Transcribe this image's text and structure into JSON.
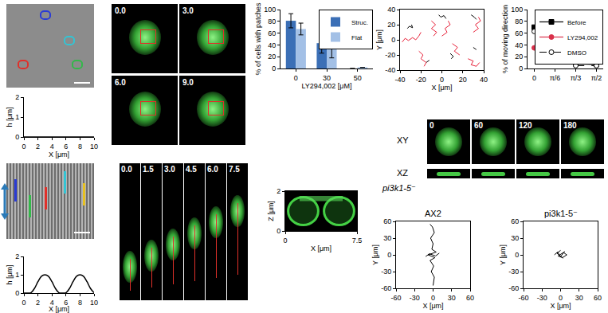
{
  "chart_data": [
    {
      "type": "line",
      "x": [
        0,
        1,
        2,
        3,
        4,
        5,
        6,
        7,
        8,
        9,
        10
      ],
      "values": [
        0,
        0,
        0,
        0,
        0,
        0,
        0,
        0,
        0,
        0,
        0
      ],
      "color": "#000000",
      "xlim": [
        0,
        10
      ],
      "xticks": [
        0,
        2,
        4,
        6,
        8,
        10
      ],
      "ylim": [
        0,
        2
      ],
      "yticks": [
        0,
        1,
        2
      ],
      "xlabel": "X [μm]",
      "ylabel": "h [μm]"
    },
    {
      "type": "line",
      "x": [
        0,
        0.5,
        1,
        1.5,
        2,
        2.5,
        3,
        3.5,
        4,
        4.5,
        5,
        5.5,
        6,
        6.5,
        7,
        7.5,
        8,
        8.5,
        9,
        9.5,
        10
      ],
      "values": [
        0,
        0,
        0.02,
        0.25,
        0.62,
        0.92,
        1,
        0.92,
        0.62,
        0.25,
        0.02,
        0,
        0.02,
        0.25,
        0.62,
        0.92,
        1,
        0.92,
        0.62,
        0.25,
        0.02
      ],
      "color": "#000000",
      "xlim": [
        0,
        10
      ],
      "xticks": [
        0,
        2,
        4,
        6,
        8,
        10
      ],
      "ylim": [
        0,
        2
      ],
      "yticks": [
        0,
        1,
        2
      ],
      "xlabel": "X [μm]",
      "ylabel": "h [μm]"
    },
    {
      "type": "bar",
      "categories": [
        "0",
        "30",
        "50"
      ],
      "series": [
        {
          "name": "Struc.",
          "color": "#3b6fb6",
          "values": [
            81,
            43,
            0
          ],
          "errors": [
            12,
            17,
            null
          ]
        },
        {
          "name": "Flat",
          "color": "#a3c0e6",
          "values": [
            67,
            46,
            2
          ],
          "errors": [
            10,
            28,
            null
          ]
        }
      ],
      "ylim": [
        0,
        100
      ],
      "yticks": [
        0,
        20,
        40,
        60,
        80,
        100
      ],
      "ylabel": "% of cells with patches",
      "xlabel": "LY294,002 [μM]",
      "legend": "upper right"
    },
    {
      "type": "scatter",
      "line_style": "solid",
      "series": [
        {
          "color": "#000000",
          "x": [
            -33,
            -31,
            -28,
            -29,
            null,
            -3,
            -1,
            2,
            4,
            null,
            28,
            31,
            33,
            null,
            8,
            11,
            9,
            null,
            30,
            33,
            null,
            -15,
            -12
          ],
          "values": [
            15,
            18,
            16,
            20,
            null,
            33,
            30,
            32,
            28,
            null,
            33,
            30,
            27,
            null,
            -18,
            -22,
            -25,
            null,
            -10,
            -13,
            null,
            -30,
            -27
          ]
        },
        {
          "color": "#e8223a",
          "x": [
            -38,
            -35,
            -32,
            -28,
            -25,
            -22,
            -20,
            null,
            -22,
            -18,
            -20,
            -15,
            -17,
            null,
            -10,
            -6,
            -10,
            -5,
            -8,
            null,
            0,
            5,
            3,
            8,
            6,
            null,
            10,
            15,
            12,
            17,
            null,
            25,
            30,
            28,
            33,
            36,
            null,
            30,
            35,
            32,
            37,
            35
          ],
          "values": [
            -3,
            2,
            -1,
            3,
            0,
            5,
            10,
            null,
            -15,
            -20,
            -25,
            -30,
            -35,
            null,
            25,
            20,
            15,
            10,
            5,
            null,
            5,
            10,
            15,
            20,
            25,
            null,
            -5,
            -10,
            -15,
            -20,
            null,
            -25,
            -28,
            -33,
            -35,
            -30,
            null,
            10,
            15,
            20,
            25,
            30
          ]
        }
      ],
      "xlim": [
        -40,
        40
      ],
      "xticks": [
        -40,
        -20,
        0,
        20,
        40
      ],
      "ylim": [
        -40,
        40
      ],
      "yticks": [
        -40,
        -20,
        0,
        20,
        40
      ],
      "xlabel": "X [μm]",
      "ylabel": "Y [μm]"
    },
    {
      "type": "line",
      "categories": [
        "0",
        "π/6",
        "π/3",
        "π/2"
      ],
      "series": [
        {
          "name": "Before",
          "color": "#000000",
          "marker": "square",
          "line_style": "solid",
          "values": [
            70,
            20,
            8,
            7
          ]
        },
        {
          "name": "LY294,002",
          "color": "#d9304a",
          "marker": "circle",
          "line_style": "solid",
          "values": [
            35,
            23,
            19,
            23
          ]
        },
        {
          "name": "DMSO",
          "color": "#000000",
          "marker": "open circle",
          "line_style": "dashed",
          "values": [
            63,
            17,
            5,
            5
          ]
        }
      ],
      "ylim": [
        0,
        100
      ],
      "yticks": [
        0,
        20,
        40,
        60,
        80,
        100
      ],
      "ylabel": "% of moving direction",
      "legend": "upper right"
    },
    {
      "type": "image",
      "xlim": [
        0,
        7.5
      ],
      "xticks": [
        0,
        7.5
      ],
      "ylim": [
        0,
        2
      ],
      "yticks": [
        0,
        2
      ],
      "xlabel": "X [μm]",
      "ylabel": "Z [μm]"
    },
    {
      "type": "scatter",
      "title": "AX2",
      "line_style": "solid",
      "series": [
        {
          "color": "#000000",
          "x": [
            0,
            2,
            -3,
            1,
            -5,
            3,
            -8,
            5,
            -2,
            0,
            -4,
            2,
            -1,
            -5,
            null,
            -12,
            -6,
            4,
            10
          ],
          "values": [
            -55,
            -40,
            -30,
            -20,
            -10,
            -5,
            0,
            5,
            10,
            20,
            30,
            40,
            50,
            55,
            null,
            -3,
            2,
            -2,
            3
          ]
        }
      ],
      "xlim": [
        -60,
        60
      ],
      "xticks": [
        -60,
        -30,
        0,
        30,
        60
      ],
      "ylim": [
        -60,
        60
      ],
      "yticks": [
        -60,
        -30,
        0,
        30,
        60
      ],
      "xlabel": "X [μm]",
      "ylabel": "Y [μm]"
    },
    {
      "type": "scatter",
      "title": "pi3k1-5⁻",
      "line_style": "solid",
      "series": [
        {
          "color": "#000000",
          "x": [
            -10,
            -5,
            0,
            5,
            10,
            3,
            -4,
            7,
            null,
            0,
            -6,
            4
          ],
          "values": [
            0,
            5,
            -3,
            4,
            0,
            -5,
            -2,
            6,
            null,
            8,
            3,
            -6
          ]
        }
      ],
      "xlim": [
        -60,
        60
      ],
      "xticks": [
        -60,
        -30,
        0,
        30,
        60
      ],
      "ylim": [
        -60,
        60
      ],
      "yticks": [
        -60,
        -30,
        0,
        30,
        60
      ],
      "xlabel": "X [μm]",
      "ylabel": "Y [μm]"
    }
  ],
  "images": {
    "timelapse_top": [
      "0.0",
      "3.0",
      "6.0",
      "9.0"
    ],
    "timelapse_bottom": [
      "0.0",
      "1.5",
      "3.0",
      "4.5",
      "6.0",
      "7.5"
    ],
    "pi3k_frames": {
      "times": [
        "0",
        "60",
        "120",
        "180"
      ],
      "rows": [
        "XY",
        "XZ"
      ],
      "strain": "pi3k1-5⁻"
    }
  }
}
